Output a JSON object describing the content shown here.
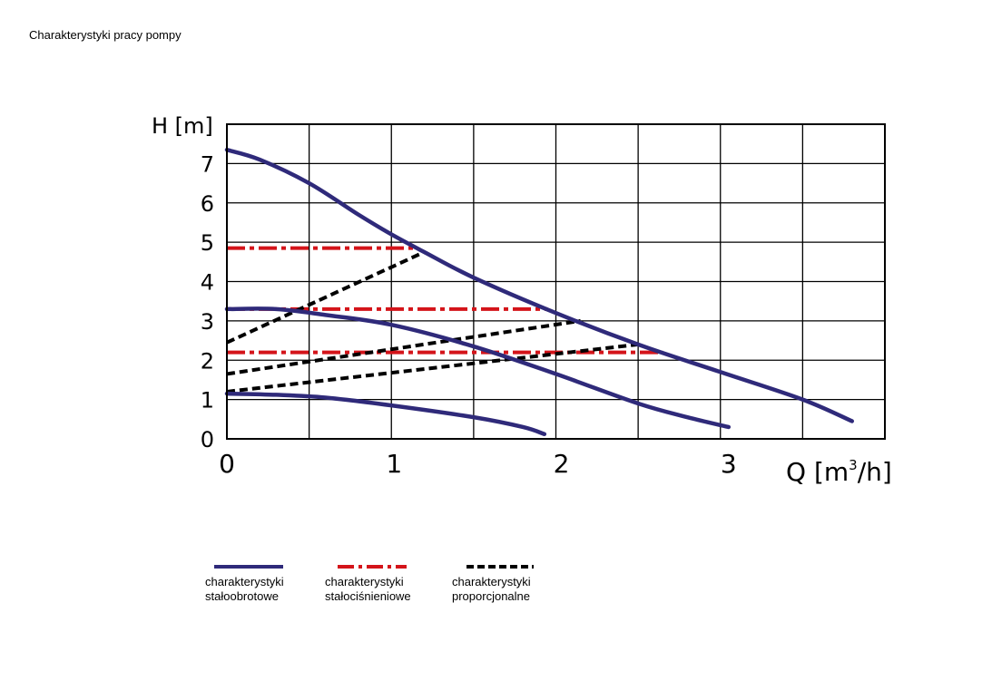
{
  "page": {
    "title": "Charakterystyki pracy pompy"
  },
  "colors": {
    "stalobrotowe": "#2f2a7a",
    "stalocisnieniowe": "#d4141a",
    "proporcjonalne": "#000000",
    "grid": "#000000"
  },
  "legend": [
    {
      "key": "stalobrotowe",
      "label_line1": "charakterystyki",
      "label_line2": "stałoobrotowe",
      "style": "solid"
    },
    {
      "key": "stalocisnieniowe",
      "label_line1": "charakterystyki",
      "label_line2": "stałociśnieniowe",
      "style": "dashdot"
    },
    {
      "key": "proporcjonalne",
      "label_line1": "charakterystyki",
      "label_line2": "proporcjonalne",
      "style": "dashed"
    }
  ],
  "chart_data": {
    "type": "line",
    "title": "Charakterystyki pracy pompy",
    "xlabel": "Q [m3/h]",
    "xlabel_base": "Q [m",
    "xlabel_sup": "3",
    "xlabel_tail": "/h]",
    "ylabel": "H [m]",
    "xlim": [
      0,
      4
    ],
    "ylim": [
      0,
      8
    ],
    "x_ticks": [
      0,
      1,
      2,
      3
    ],
    "y_ticks": [
      0,
      1,
      2,
      3,
      4,
      5,
      6,
      7
    ],
    "x_gridlines": [
      0,
      0.5,
      1,
      1.5,
      2,
      2.5,
      3,
      3.5,
      4
    ],
    "y_gridlines": [
      0,
      1,
      2,
      3,
      4,
      5,
      6,
      7,
      8
    ],
    "grid": true,
    "series": [
      {
        "group": "stalobrotowe",
        "style": "solid",
        "points": [
          [
            0,
            7.35
          ],
          [
            0.2,
            7.1
          ],
          [
            0.5,
            6.5
          ],
          [
            0.8,
            5.7
          ],
          [
            1.0,
            5.2
          ],
          [
            1.2,
            4.75
          ],
          [
            1.5,
            4.1
          ],
          [
            2.0,
            3.2
          ],
          [
            2.5,
            2.4
          ],
          [
            3.0,
            1.7
          ],
          [
            3.5,
            1.0
          ],
          [
            3.8,
            0.45
          ]
        ]
      },
      {
        "group": "stalobrotowe",
        "style": "solid",
        "points": [
          [
            0,
            3.3
          ],
          [
            0.3,
            3.3
          ],
          [
            0.6,
            3.15
          ],
          [
            1.0,
            2.9
          ],
          [
            1.5,
            2.35
          ],
          [
            2.0,
            1.65
          ],
          [
            2.5,
            0.9
          ],
          [
            2.8,
            0.55
          ],
          [
            3.05,
            0.3
          ]
        ]
      },
      {
        "group": "stalobrotowe",
        "style": "solid",
        "points": [
          [
            0,
            1.15
          ],
          [
            0.3,
            1.12
          ],
          [
            0.6,
            1.05
          ],
          [
            1.0,
            0.85
          ],
          [
            1.5,
            0.55
          ],
          [
            1.8,
            0.3
          ],
          [
            1.93,
            0.12
          ]
        ]
      },
      {
        "group": "stalocisnieniowe",
        "style": "dashdot",
        "points": [
          [
            0,
            4.85
          ],
          [
            1.15,
            4.85
          ]
        ]
      },
      {
        "group": "stalocisnieniowe",
        "style": "dashdot",
        "points": [
          [
            0,
            3.3
          ],
          [
            1.95,
            3.3
          ]
        ]
      },
      {
        "group": "stalocisnieniowe",
        "style": "dashdot",
        "points": [
          [
            0,
            2.2
          ],
          [
            2.65,
            2.2
          ]
        ]
      },
      {
        "group": "proporcjonalne",
        "style": "dashed",
        "points": [
          [
            0,
            2.45
          ],
          [
            1.2,
            4.75
          ]
        ]
      },
      {
        "group": "proporcjonalne",
        "style": "dashed",
        "points": [
          [
            0,
            1.65
          ],
          [
            2.15,
            3.0
          ]
        ]
      },
      {
        "group": "proporcjonalne",
        "style": "dashed",
        "points": [
          [
            0,
            1.2
          ],
          [
            2.5,
            2.4
          ]
        ]
      }
    ]
  }
}
